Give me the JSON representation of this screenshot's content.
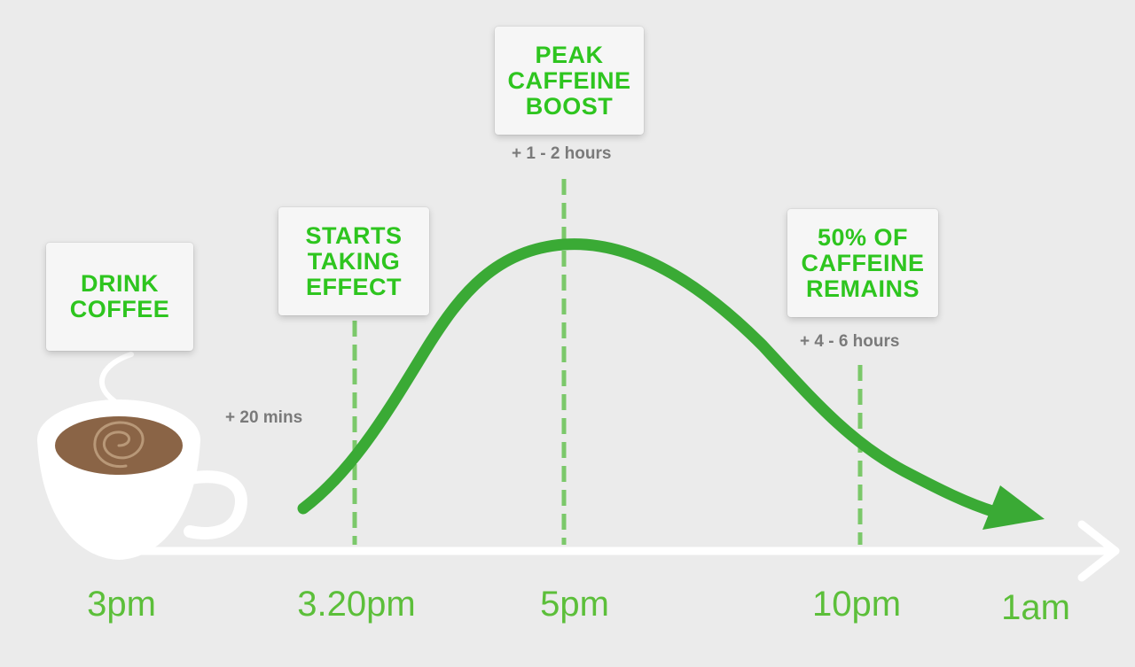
{
  "signs": {
    "drink": "DRINK\nCOFFEE",
    "starts": "STARTS\nTAKING\nEFFECT",
    "peak": "PEAK\nCAFFEINE\nBOOST",
    "half": "50% OF\nCAFFEINE\nREMAINS"
  },
  "notes": {
    "twenty": "+ 20 mins",
    "peak": "+ 1 - 2 hours",
    "half": "+ 4 - 6 hours"
  },
  "timeline": {
    "t1": "3pm",
    "t2": "3.20pm",
    "t3": "5pm",
    "t4": "10pm",
    "t5": "1am"
  },
  "colors": {
    "background": "#ebebeb",
    "accent_green": "#2ec51f",
    "curve_green": "#3aaa35",
    "dashed_green": "#7bc86a",
    "label_green": "#5cbf3a",
    "coffee": "#8a6446"
  },
  "icons": [
    "coffee-cup-icon",
    "steam-icon",
    "timeline-arrow-icon"
  ]
}
